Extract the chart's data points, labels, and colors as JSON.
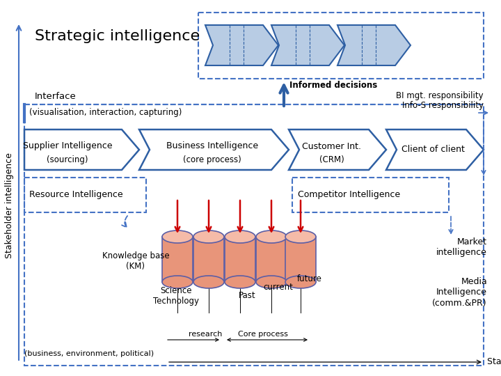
{
  "background_color": "#ffffff",
  "stakeholder_label": "Stakeholder intelligence",
  "strategic_label": "Strategic intelligence",
  "informed_decisions": "Informed decisions",
  "interface_label": "Interface",
  "vis_label": "(visualisation, interaction, capturing)",
  "bi_resp": "BI mgt. responsibility",
  "info_resp": "Info-S responsibility",
  "supplier_label": "Supplier Intelligence",
  "sourcing_label": "(sourcing)",
  "bi_label": "Business Intelligence",
  "core_label": "(core process)",
  "customer_label": "Customer Int.",
  "crm_label": "(CRM)",
  "client_label": "Client of client",
  "resource_label": "Resource Intelligence",
  "competitor_label": "Competitor Intelligence",
  "kb_label": "Knowledge base\n(KM)",
  "science_label": "Science\nTechnology",
  "past_label": "Past",
  "current_label": "current",
  "future_label": "future",
  "research_label": "research",
  "coreprocess_label": "Core process",
  "business_label": "(business, environment, political)",
  "stakeholder_bottom": "Stakeholder intelligence",
  "market_label": "Market\nintelligence",
  "media_label": "Media\nIntelligence\n(comm.&PR)",
  "arrow_color": "#2E5FA3",
  "dashed_color": "#4472C4",
  "chevron_fill": "#B8CCE4",
  "chevron_stroke": "#2E5FA3",
  "process_arrow_fill": "#FFFFFF",
  "process_arrow_stroke": "#2E5FA3",
  "cylinder_fill": "#E8957A",
  "cylinder_stroke": "#5B5EA6",
  "cylinder_top": "#F5BBA8",
  "red_arrow": "#CC0000"
}
